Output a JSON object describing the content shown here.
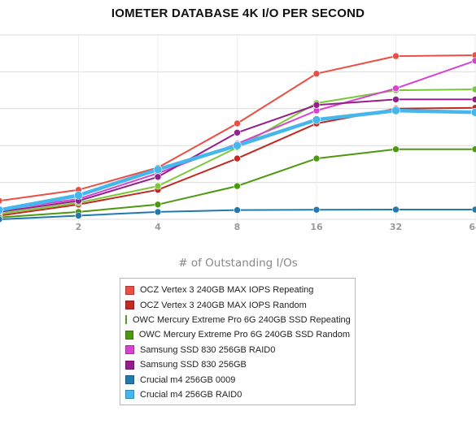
{
  "chart_data": {
    "type": "line",
    "title": "IOMETER DATABASE 4K I/O PER SECOND",
    "xlabel": "# of Outstanding I/Os",
    "ylabel": "",
    "x": [
      1,
      2,
      4,
      8,
      16,
      32,
      64
    ],
    "x_ticks": [
      "2",
      "4",
      "8",
      "16",
      "32",
      "64"
    ],
    "x_scale": "log2",
    "ylim": [
      0,
      100
    ],
    "grid": "horizontal",
    "legend_placement": "bottom-center",
    "series": [
      {
        "name": "OCZ Vertex 3 240GB MAX IOPS Repeating",
        "color": "#ea4e44",
        "values": [
          10,
          16,
          28,
          52,
          79,
          88.5,
          89
        ]
      },
      {
        "name": "OCZ Vertex 3 240GB MAX IOPS Random",
        "color": "#c02a22",
        "values": [
          2,
          8,
          16,
          33,
          52,
          60,
          60.5
        ]
      },
      {
        "name": "OWC Mercury Extreme Pro 6G 240GB SSD Repeating",
        "color": "#79c83a",
        "values": [
          3,
          9,
          18,
          39,
          63,
          70,
          70.5
        ]
      },
      {
        "name": "OWC Mercury Extreme Pro 6G 240GB SSD Random",
        "color": "#4d9810",
        "values": [
          1,
          4,
          8,
          18,
          33,
          38,
          38
        ]
      },
      {
        "name": "Samsung SSD 830 256GB RAID0",
        "color": "#d743cf",
        "values": [
          5,
          11,
          25,
          41,
          59,
          71,
          86
        ]
      },
      {
        "name": "Samsung SSD 830 256GB",
        "color": "#931e8c",
        "values": [
          4,
          10,
          23,
          47,
          62,
          65,
          65
        ]
      },
      {
        "name": "Crucial m4 256GB 0009",
        "color": "#2179ad",
        "values": [
          0,
          2,
          4,
          5,
          5.2,
          5.3,
          5.3
        ]
      },
      {
        "name": "Crucial m4 256GB RAID0",
        "color": "#46b7ec",
        "values": [
          5,
          13,
          27,
          40,
          54,
          59,
          58
        ]
      }
    ]
  }
}
